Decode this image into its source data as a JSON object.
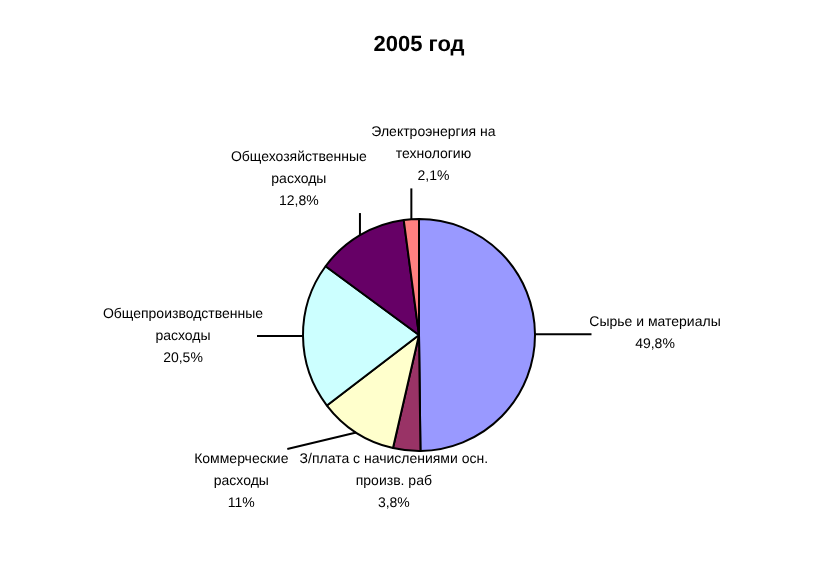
{
  "chart_data": {
    "type": "pie",
    "title": "2005 год",
    "categories": [
      "Сырье и материалы",
      "З/плата с начислениями осн.\nпроизв. раб",
      "Коммерческие\nрасходы",
      "Общепроизводственные\nрасходы",
      "Общехозяйственные\nрасходы",
      "Электроэнергия на\nтехнологию"
    ],
    "values": [
      49.8,
      3.8,
      11,
      20.5,
      12.8,
      2.1
    ],
    "colors": [
      "#9999ff",
      "#993366",
      "#ffffcc",
      "#ccffff",
      "#660066",
      "#ff8080"
    ],
    "value_labels": [
      "49,8%",
      "3,8%",
      "11%",
      "20,5%",
      "12,8%",
      "2,1%"
    ]
  }
}
